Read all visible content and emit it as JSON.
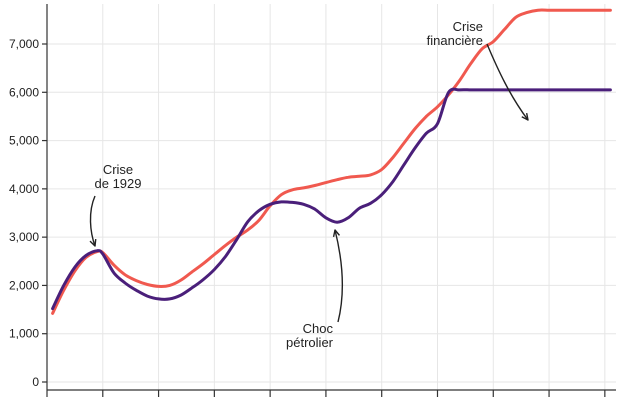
{
  "chart_data": {
    "type": "line",
    "title": "",
    "xlabel": "",
    "ylabel": "",
    "ylim": [
      0,
      7700
    ],
    "yticks": [
      0,
      1000,
      2000,
      3000,
      4000,
      5000,
      6000,
      7000
    ],
    "ytick_labels": [
      "0",
      "1,000",
      "2,000",
      "3,000",
      "4,000",
      "5,000",
      "6,000",
      "7,000"
    ],
    "xlim": [
      1920,
      2022
    ],
    "xticks": [
      1920,
      1930,
      1940,
      1950,
      1960,
      1970,
      1980,
      1990,
      2000,
      2010,
      2020
    ],
    "grid": true,
    "legend": "none",
    "colors": {
      "red": "#f0594f",
      "purple": "#4a1f7a"
    },
    "series": [
      {
        "color": "#f0594f",
        "x": [
          1921,
          1923,
          1925,
          1927,
          1929,
          1930,
          1932,
          1934,
          1936,
          1938,
          1940,
          1942,
          1944,
          1946,
          1948,
          1950,
          1952,
          1954,
          1956,
          1958,
          1960,
          1962,
          1964,
          1966,
          1968,
          1970,
          1972,
          1974,
          1976,
          1978,
          1980,
          1982,
          1984,
          1986,
          1988,
          1990,
          1992,
          1994,
          1996,
          1998,
          2000,
          2002,
          2004,
          2006,
          2008,
          2010,
          2012,
          2014,
          2016,
          2018,
          2020,
          2021
        ],
        "y": [
          1420,
          1900,
          2300,
          2580,
          2700,
          2680,
          2420,
          2220,
          2100,
          2020,
          1980,
          2000,
          2110,
          2280,
          2450,
          2640,
          2830,
          3000,
          3150,
          3350,
          3650,
          3880,
          3980,
          4020,
          4070,
          4130,
          4190,
          4240,
          4260,
          4290,
          4400,
          4650,
          4950,
          5250,
          5500,
          5700,
          5950,
          6250,
          6600,
          6900,
          7050,
          7300,
          7550,
          7650,
          7700,
          7700,
          7700,
          7700,
          7700,
          7700,
          7700,
          7700
        ]
      },
      {
        "color": "#4a1f7a",
        "x": [
          1921,
          1923,
          1925,
          1927,
          1929,
          1930,
          1932,
          1934,
          1936,
          1938,
          1940,
          1942,
          1944,
          1946,
          1948,
          1950,
          1952,
          1954,
          1956,
          1958,
          1960,
          1962,
          1964,
          1966,
          1968,
          1970,
          1972,
          1974,
          1976,
          1978,
          1980,
          1982,
          1984,
          1986,
          1988,
          1990,
          1992,
          1994,
          1996,
          1998,
          2000,
          2002,
          2004,
          2006,
          2008,
          2010,
          2012,
          2014,
          2016,
          2018,
          2020,
          2021
        ],
        "y": [
          1520,
          2000,
          2380,
          2620,
          2720,
          2650,
          2260,
          2050,
          1900,
          1780,
          1720,
          1720,
          1800,
          1950,
          2120,
          2330,
          2600,
          2950,
          3320,
          3550,
          3680,
          3730,
          3720,
          3680,
          3580,
          3400,
          3310,
          3400,
          3600,
          3700,
          3880,
          4150,
          4500,
          4850,
          5150,
          5350,
          6000,
          6050,
          6050,
          6050,
          6050,
          6050,
          6050,
          6050,
          6050,
          6050,
          6050,
          6050,
          6050,
          6050,
          6050,
          6050
        ]
      }
    ],
    "annotations": [
      {
        "lines": [
          "Crise",
          "de 1929"
        ],
        "x": 1929
      },
      {
        "lines": [
          "Choc",
          "pétrolier"
        ],
        "x": 1973
      },
      {
        "lines": [
          "Crise",
          "financière"
        ],
        "x": 2008
      }
    ]
  }
}
